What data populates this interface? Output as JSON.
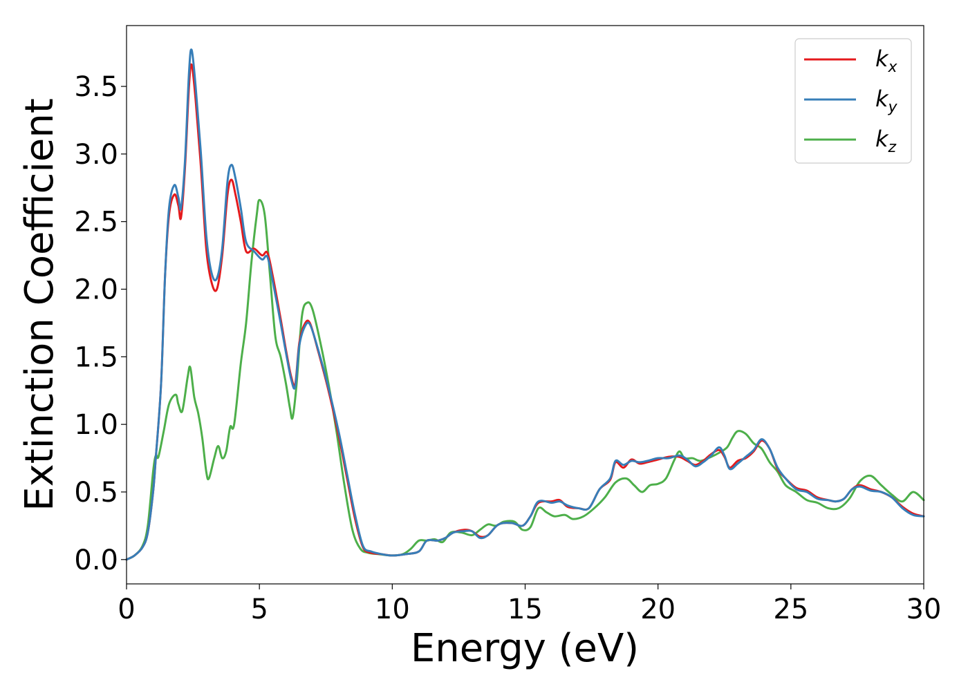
{
  "chart_data": {
    "type": "line",
    "title": "",
    "xlabel": "Energy (eV)",
    "ylabel": "Extinction Coefficient",
    "xlim": [
      0,
      30
    ],
    "ylim": [
      -0.18,
      3.95
    ],
    "xticks": [
      0,
      5,
      10,
      15,
      20,
      25,
      30
    ],
    "xtick_labels": [
      "0",
      "5",
      "10",
      "15",
      "20",
      "25",
      "30"
    ],
    "yticks": [
      0.0,
      0.5,
      1.0,
      1.5,
      2.0,
      2.5,
      3.0,
      3.5
    ],
    "ytick_labels": [
      "0.0",
      "0.5",
      "1.0",
      "1.5",
      "2.0",
      "2.5",
      "3.0",
      "3.5"
    ],
    "grid": false,
    "legend_position": "top-right",
    "series": [
      {
        "name": "k",
        "subscript": "x",
        "color": "#e41a1c",
        "points": [
          [
            0,
            0.0
          ],
          [
            0.3,
            0.03
          ],
          [
            0.6,
            0.09
          ],
          [
            0.8,
            0.2
          ],
          [
            1.0,
            0.5
          ],
          [
            1.1,
            0.75
          ],
          [
            1.3,
            1.3
          ],
          [
            1.45,
            2.1
          ],
          [
            1.6,
            2.55
          ],
          [
            1.8,
            2.7
          ],
          [
            1.95,
            2.62
          ],
          [
            2.05,
            2.53
          ],
          [
            2.2,
            2.9
          ],
          [
            2.35,
            3.5
          ],
          [
            2.45,
            3.66
          ],
          [
            2.6,
            3.4
          ],
          [
            2.8,
            2.9
          ],
          [
            3.0,
            2.3
          ],
          [
            3.2,
            2.05
          ],
          [
            3.4,
            2.0
          ],
          [
            3.6,
            2.25
          ],
          [
            3.8,
            2.7
          ],
          [
            3.95,
            2.81
          ],
          [
            4.1,
            2.7
          ],
          [
            4.3,
            2.5
          ],
          [
            4.5,
            2.28
          ],
          [
            4.8,
            2.3
          ],
          [
            5.1,
            2.25
          ],
          [
            5.3,
            2.27
          ],
          [
            5.5,
            2.1
          ],
          [
            5.8,
            1.78
          ],
          [
            6.0,
            1.55
          ],
          [
            6.2,
            1.35
          ],
          [
            6.35,
            1.3
          ],
          [
            6.5,
            1.6
          ],
          [
            6.7,
            1.74
          ],
          [
            6.9,
            1.75
          ],
          [
            7.2,
            1.55
          ],
          [
            7.6,
            1.25
          ],
          [
            8.0,
            0.9
          ],
          [
            8.3,
            0.6
          ],
          [
            8.6,
            0.3
          ],
          [
            8.9,
            0.09
          ],
          [
            9.2,
            0.05
          ],
          [
            9.6,
            0.04
          ],
          [
            10.0,
            0.03
          ],
          [
            10.5,
            0.04
          ],
          [
            11.0,
            0.06
          ],
          [
            11.3,
            0.14
          ],
          [
            11.7,
            0.14
          ],
          [
            12.0,
            0.16
          ],
          [
            12.3,
            0.2
          ],
          [
            12.7,
            0.22
          ],
          [
            13.0,
            0.21
          ],
          [
            13.3,
            0.17
          ],
          [
            13.6,
            0.18
          ],
          [
            14.0,
            0.26
          ],
          [
            14.5,
            0.27
          ],
          [
            14.9,
            0.25
          ],
          [
            15.2,
            0.32
          ],
          [
            15.5,
            0.42
          ],
          [
            16.0,
            0.43
          ],
          [
            16.3,
            0.44
          ],
          [
            16.6,
            0.39
          ],
          [
            17.0,
            0.38
          ],
          [
            17.4,
            0.38
          ],
          [
            17.8,
            0.52
          ],
          [
            18.2,
            0.59
          ],
          [
            18.4,
            0.72
          ],
          [
            18.7,
            0.68
          ],
          [
            19.0,
            0.74
          ],
          [
            19.3,
            0.71
          ],
          [
            19.6,
            0.72
          ],
          [
            20.0,
            0.74
          ],
          [
            20.4,
            0.76
          ],
          [
            20.8,
            0.76
          ],
          [
            21.1,
            0.73
          ],
          [
            21.4,
            0.7
          ],
          [
            21.7,
            0.73
          ],
          [
            22.0,
            0.78
          ],
          [
            22.3,
            0.81
          ],
          [
            22.5,
            0.76
          ],
          [
            22.7,
            0.68
          ],
          [
            23.0,
            0.73
          ],
          [
            23.3,
            0.75
          ],
          [
            23.6,
            0.8
          ],
          [
            23.9,
            0.88
          ],
          [
            24.2,
            0.82
          ],
          [
            24.5,
            0.67
          ],
          [
            24.8,
            0.6
          ],
          [
            25.2,
            0.53
          ],
          [
            25.6,
            0.51
          ],
          [
            26.0,
            0.46
          ],
          [
            26.4,
            0.44
          ],
          [
            26.7,
            0.43
          ],
          [
            27.0,
            0.45
          ],
          [
            27.3,
            0.52
          ],
          [
            27.6,
            0.55
          ],
          [
            28.0,
            0.52
          ],
          [
            28.4,
            0.5
          ],
          [
            28.8,
            0.46
          ],
          [
            29.2,
            0.39
          ],
          [
            29.6,
            0.34
          ],
          [
            30.0,
            0.32
          ]
        ]
      },
      {
        "name": "k",
        "subscript": "y",
        "color": "#377eb8",
        "points": [
          [
            0,
            0.0
          ],
          [
            0.3,
            0.03
          ],
          [
            0.6,
            0.09
          ],
          [
            0.8,
            0.2
          ],
          [
            1.0,
            0.5
          ],
          [
            1.1,
            0.75
          ],
          [
            1.3,
            1.3
          ],
          [
            1.45,
            2.1
          ],
          [
            1.6,
            2.6
          ],
          [
            1.8,
            2.77
          ],
          [
            1.95,
            2.68
          ],
          [
            2.05,
            2.6
          ],
          [
            2.2,
            2.95
          ],
          [
            2.35,
            3.6
          ],
          [
            2.45,
            3.77
          ],
          [
            2.6,
            3.5
          ],
          [
            2.8,
            3.0
          ],
          [
            3.0,
            2.4
          ],
          [
            3.2,
            2.12
          ],
          [
            3.4,
            2.08
          ],
          [
            3.6,
            2.3
          ],
          [
            3.8,
            2.8
          ],
          [
            3.95,
            2.92
          ],
          [
            4.1,
            2.82
          ],
          [
            4.3,
            2.6
          ],
          [
            4.5,
            2.35
          ],
          [
            4.8,
            2.28
          ],
          [
            5.1,
            2.22
          ],
          [
            5.3,
            2.24
          ],
          [
            5.5,
            2.06
          ],
          [
            5.8,
            1.75
          ],
          [
            6.0,
            1.53
          ],
          [
            6.2,
            1.33
          ],
          [
            6.35,
            1.28
          ],
          [
            6.5,
            1.58
          ],
          [
            6.7,
            1.72
          ],
          [
            6.9,
            1.74
          ],
          [
            7.2,
            1.56
          ],
          [
            7.6,
            1.27
          ],
          [
            8.0,
            0.93
          ],
          [
            8.3,
            0.63
          ],
          [
            8.6,
            0.33
          ],
          [
            8.9,
            0.1
          ],
          [
            9.2,
            0.06
          ],
          [
            9.6,
            0.04
          ],
          [
            10.0,
            0.03
          ],
          [
            10.5,
            0.04
          ],
          [
            11.0,
            0.06
          ],
          [
            11.3,
            0.14
          ],
          [
            11.7,
            0.14
          ],
          [
            12.0,
            0.16
          ],
          [
            12.3,
            0.2
          ],
          [
            12.7,
            0.21
          ],
          [
            13.0,
            0.21
          ],
          [
            13.3,
            0.16
          ],
          [
            13.6,
            0.18
          ],
          [
            14.0,
            0.26
          ],
          [
            14.5,
            0.27
          ],
          [
            14.9,
            0.25
          ],
          [
            15.2,
            0.32
          ],
          [
            15.5,
            0.43
          ],
          [
            16.0,
            0.42
          ],
          [
            16.3,
            0.43
          ],
          [
            16.6,
            0.4
          ],
          [
            17.0,
            0.38
          ],
          [
            17.4,
            0.38
          ],
          [
            17.8,
            0.52
          ],
          [
            18.2,
            0.6
          ],
          [
            18.4,
            0.73
          ],
          [
            18.7,
            0.7
          ],
          [
            19.0,
            0.73
          ],
          [
            19.3,
            0.72
          ],
          [
            19.6,
            0.73
          ],
          [
            20.0,
            0.75
          ],
          [
            20.4,
            0.75
          ],
          [
            20.8,
            0.77
          ],
          [
            21.1,
            0.74
          ],
          [
            21.4,
            0.69
          ],
          [
            21.7,
            0.72
          ],
          [
            22.0,
            0.77
          ],
          [
            22.3,
            0.83
          ],
          [
            22.5,
            0.77
          ],
          [
            22.7,
            0.67
          ],
          [
            23.0,
            0.71
          ],
          [
            23.3,
            0.76
          ],
          [
            23.6,
            0.81
          ],
          [
            23.9,
            0.89
          ],
          [
            24.2,
            0.82
          ],
          [
            24.5,
            0.68
          ],
          [
            24.8,
            0.6
          ],
          [
            25.2,
            0.52
          ],
          [
            25.6,
            0.5
          ],
          [
            26.0,
            0.45
          ],
          [
            26.4,
            0.44
          ],
          [
            26.7,
            0.43
          ],
          [
            27.0,
            0.45
          ],
          [
            27.3,
            0.52
          ],
          [
            27.6,
            0.54
          ],
          [
            28.0,
            0.51
          ],
          [
            28.4,
            0.5
          ],
          [
            28.8,
            0.46
          ],
          [
            29.2,
            0.38
          ],
          [
            29.6,
            0.33
          ],
          [
            30.0,
            0.32
          ]
        ]
      },
      {
        "name": "k",
        "subscript": "z",
        "color": "#4daf4a",
        "points": [
          [
            0,
            0.0
          ],
          [
            0.3,
            0.03
          ],
          [
            0.6,
            0.1
          ],
          [
            0.8,
            0.25
          ],
          [
            1.0,
            0.65
          ],
          [
            1.1,
            0.77
          ],
          [
            1.2,
            0.76
          ],
          [
            1.4,
            0.95
          ],
          [
            1.6,
            1.15
          ],
          [
            1.85,
            1.22
          ],
          [
            1.95,
            1.15
          ],
          [
            2.1,
            1.1
          ],
          [
            2.3,
            1.35
          ],
          [
            2.4,
            1.42
          ],
          [
            2.55,
            1.2
          ],
          [
            2.7,
            1.08
          ],
          [
            2.85,
            0.9
          ],
          [
            3.0,
            0.65
          ],
          [
            3.1,
            0.6
          ],
          [
            3.3,
            0.75
          ],
          [
            3.45,
            0.84
          ],
          [
            3.6,
            0.75
          ],
          [
            3.75,
            0.8
          ],
          [
            3.9,
            0.98
          ],
          [
            4.05,
            1.0
          ],
          [
            4.3,
            1.45
          ],
          [
            4.5,
            1.75
          ],
          [
            4.7,
            2.2
          ],
          [
            4.9,
            2.55
          ],
          [
            5.0,
            2.66
          ],
          [
            5.2,
            2.55
          ],
          [
            5.4,
            2.1
          ],
          [
            5.6,
            1.65
          ],
          [
            5.8,
            1.5
          ],
          [
            6.0,
            1.3
          ],
          [
            6.15,
            1.12
          ],
          [
            6.25,
            1.05
          ],
          [
            6.4,
            1.3
          ],
          [
            6.6,
            1.8
          ],
          [
            6.8,
            1.9
          ],
          [
            7.0,
            1.85
          ],
          [
            7.3,
            1.6
          ],
          [
            7.6,
            1.3
          ],
          [
            7.9,
            0.95
          ],
          [
            8.2,
            0.55
          ],
          [
            8.5,
            0.22
          ],
          [
            8.8,
            0.08
          ],
          [
            9.1,
            0.05
          ],
          [
            9.5,
            0.04
          ],
          [
            10.0,
            0.03
          ],
          [
            10.4,
            0.04
          ],
          [
            10.7,
            0.08
          ],
          [
            11.0,
            0.14
          ],
          [
            11.3,
            0.14
          ],
          [
            11.6,
            0.15
          ],
          [
            11.9,
            0.13
          ],
          [
            12.2,
            0.2
          ],
          [
            12.6,
            0.2
          ],
          [
            13.0,
            0.18
          ],
          [
            13.3,
            0.22
          ],
          [
            13.6,
            0.26
          ],
          [
            13.9,
            0.25
          ],
          [
            14.2,
            0.28
          ],
          [
            14.6,
            0.28
          ],
          [
            14.9,
            0.22
          ],
          [
            15.2,
            0.24
          ],
          [
            15.5,
            0.38
          ],
          [
            15.8,
            0.35
          ],
          [
            16.1,
            0.32
          ],
          [
            16.5,
            0.33
          ],
          [
            16.8,
            0.3
          ],
          [
            17.2,
            0.32
          ],
          [
            17.6,
            0.38
          ],
          [
            18.0,
            0.46
          ],
          [
            18.4,
            0.57
          ],
          [
            18.8,
            0.6
          ],
          [
            19.1,
            0.55
          ],
          [
            19.4,
            0.5
          ],
          [
            19.7,
            0.55
          ],
          [
            20.0,
            0.56
          ],
          [
            20.3,
            0.6
          ],
          [
            20.6,
            0.73
          ],
          [
            20.8,
            0.8
          ],
          [
            21.0,
            0.75
          ],
          [
            21.3,
            0.75
          ],
          [
            21.6,
            0.73
          ],
          [
            22.0,
            0.76
          ],
          [
            22.3,
            0.79
          ],
          [
            22.6,
            0.83
          ],
          [
            22.8,
            0.9
          ],
          [
            23.0,
            0.95
          ],
          [
            23.3,
            0.93
          ],
          [
            23.6,
            0.86
          ],
          [
            23.9,
            0.82
          ],
          [
            24.2,
            0.72
          ],
          [
            24.5,
            0.65
          ],
          [
            24.8,
            0.55
          ],
          [
            25.2,
            0.5
          ],
          [
            25.6,
            0.44
          ],
          [
            26.0,
            0.42
          ],
          [
            26.4,
            0.38
          ],
          [
            26.8,
            0.38
          ],
          [
            27.2,
            0.45
          ],
          [
            27.6,
            0.58
          ],
          [
            28.0,
            0.62
          ],
          [
            28.4,
            0.55
          ],
          [
            28.8,
            0.48
          ],
          [
            29.2,
            0.43
          ],
          [
            29.6,
            0.5
          ],
          [
            30.0,
            0.44
          ]
        ]
      }
    ]
  }
}
